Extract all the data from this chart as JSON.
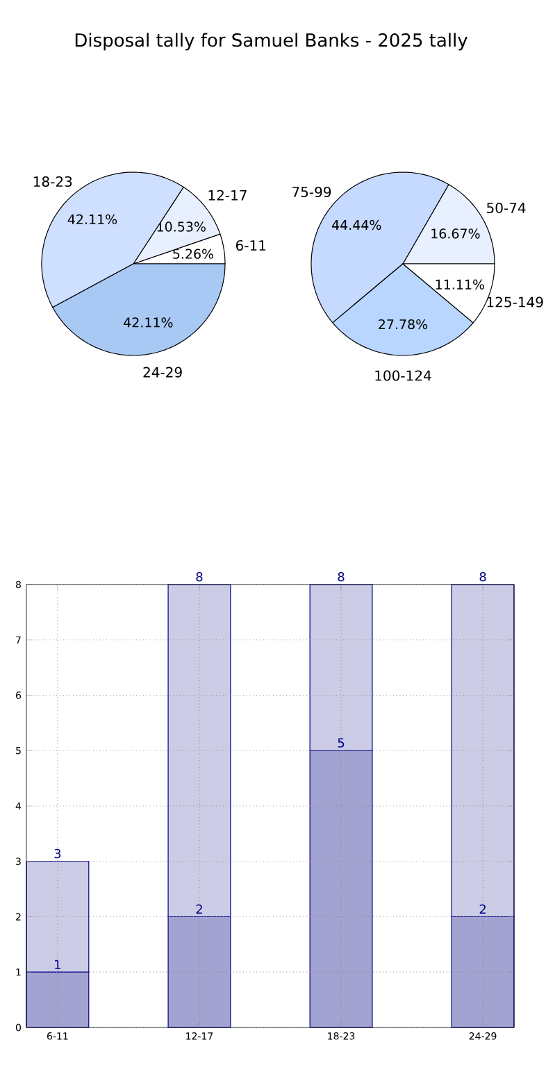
{
  "chart_data": [
    {
      "type": "pie",
      "title": "Disposal tally for Samuel Banks - 2025 tally",
      "categories": [
        "6-11",
        "12-17",
        "18-23",
        "24-29"
      ],
      "values": [
        5.26,
        10.53,
        42.11,
        42.11
      ],
      "value_labels": [
        "5.26%",
        "10.53%",
        "42.11%",
        "42.11%"
      ],
      "colors": [
        "#ffffff",
        "#e8f0ff",
        "#cfdfff",
        "#a9c9f5"
      ]
    },
    {
      "type": "pie",
      "categories": [
        "50-74",
        "75-99",
        "100-124",
        "125-149"
      ],
      "values": [
        16.67,
        44.44,
        27.78,
        11.11
      ],
      "value_labels": [
        "16.67%",
        "44.44%",
        "27.78%",
        "11.11%"
      ],
      "colors": [
        "#e8f0ff",
        "#c6d9ff",
        "#b8d6ff",
        "#ffffff"
      ]
    },
    {
      "type": "bar",
      "categories": [
        "6-11",
        "12-17",
        "18-23",
        "24-29"
      ],
      "stacked": true,
      "series": [
        {
          "color": "#a3a3d1",
          "values": [
            1,
            2,
            5,
            2
          ],
          "value_labels": [
            "1",
            "2",
            "5",
            "2"
          ]
        },
        {
          "color": "#ccccE6",
          "values": [
            2,
            6,
            3,
            6
          ]
        }
      ],
      "totals": [
        "3",
        "8",
        "8",
        "8"
      ],
      "ylim": [
        0,
        8
      ],
      "yticks": [
        0,
        1,
        2,
        3,
        4,
        5,
        6,
        7,
        8
      ],
      "grid": true
    }
  ]
}
